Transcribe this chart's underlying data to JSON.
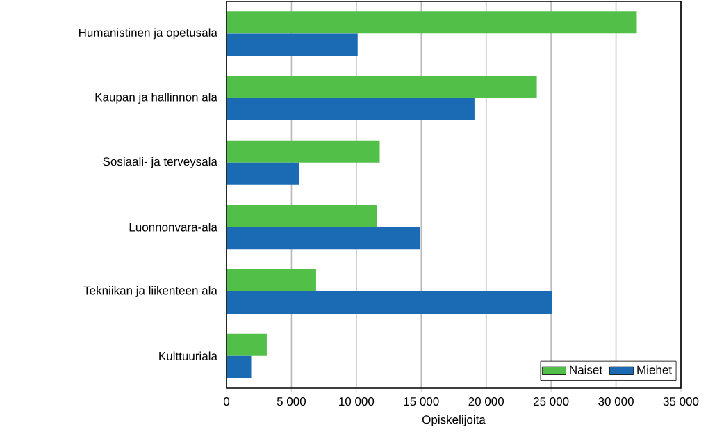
{
  "chart_data": {
    "type": "bar",
    "orientation": "horizontal",
    "xlabel": "Opiskelijoita",
    "categories": [
      "Humanistinen ja opetusala",
      "Kaupan ja hallinnon ala",
      "Sosiaali- ja terveysala",
      "Luonnonvara-ala",
      "Tekniikan ja liikenteen ala",
      "Kulttuuriala"
    ],
    "series": [
      {
        "name": "Naiset",
        "color": "#52c048",
        "values": [
          31600,
          23900,
          11800,
          11600,
          6900,
          3100
        ]
      },
      {
        "name": "Miehet",
        "color": "#1a6bb3",
        "values": [
          10100,
          19100,
          5600,
          14900,
          25100,
          1900
        ]
      }
    ],
    "xlim": [
      0,
      35000
    ],
    "xticks": [
      0,
      {
        "value": 5000,
        "label": "5 000"
      },
      {
        "value": 10000,
        "label": "10 000"
      },
      {
        "value": 15000,
        "label": "15 000"
      },
      {
        "value": 20000,
        "label": "20 000"
      },
      {
        "value": 25000,
        "label": "25 000"
      },
      {
        "value": 30000,
        "label": "30 000"
      },
      {
        "value": 35000,
        "label": "35 000"
      }
    ],
    "grid": "x",
    "legend": "bottom right"
  }
}
